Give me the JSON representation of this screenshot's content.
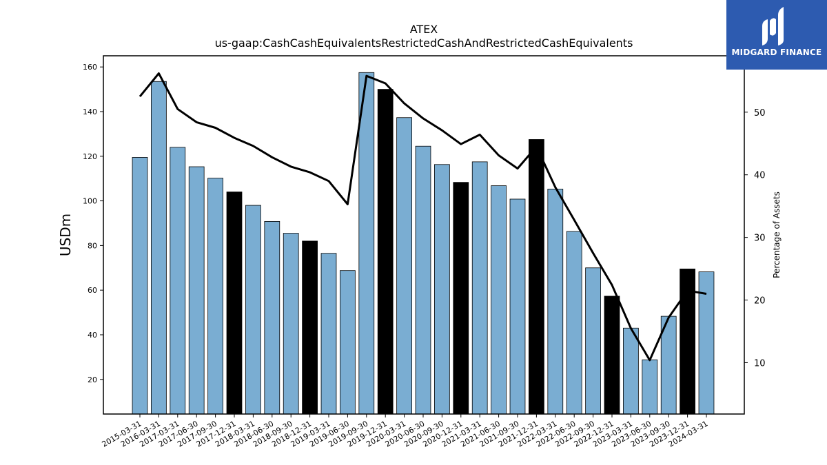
{
  "chart_data": {
    "type": "bar",
    "title": "ATEX",
    "subtitle": "us-gaap:CashCashEquivalentsRestrictedCashAndRestrictedCashEquivalents",
    "ylabel": "USDm",
    "y2label": "Percentage of Assets",
    "ylim": [
      4.5,
      165
    ],
    "y2lim": [
      1.8,
      59
    ],
    "yticks": [
      20,
      40,
      60,
      80,
      100,
      120,
      140,
      160
    ],
    "y2ticks": [
      10,
      20,
      30,
      40,
      50
    ],
    "categories": [
      "2015-03-31",
      "2016-03-31",
      "2017-03-31",
      "2017-06-30",
      "2017-09-30",
      "2017-12-31",
      "2018-03-31",
      "2018-06-30",
      "2018-09-30",
      "2018-12-31",
      "2019-03-31",
      "2019-06-30",
      "2019-09-30",
      "2019-12-31",
      "2020-03-31",
      "2020-06-30",
      "2020-09-30",
      "2020-12-31",
      "2021-03-31",
      "2021-06-30",
      "2021-09-30",
      "2021-12-31",
      "2022-03-31",
      "2022-06-30",
      "2022-09-30",
      "2022-12-31",
      "2023-03-31",
      "2023-06-30",
      "2023-09-30",
      "2023-12-31",
      "2024-03-31"
    ],
    "series": [
      {
        "values": [
          119.5,
          153.5,
          124,
          115.3,
          110.2,
          104,
          98,
          90.8,
          85.5,
          82,
          76.5,
          68.8,
          157.5,
          150,
          137.3,
          124.5,
          116.3,
          108.3,
          117.5,
          106.8,
          100.8,
          127.5,
          105.3,
          86.3,
          70,
          57.3,
          43,
          28.8,
          48.3,
          69.5,
          68.2
        ],
        "highlighted": [
          false,
          false,
          false,
          false,
          false,
          true,
          false,
          false,
          false,
          true,
          false,
          false,
          false,
          true,
          false,
          false,
          false,
          true,
          false,
          false,
          false,
          true,
          false,
          false,
          false,
          true,
          false,
          false,
          false,
          true,
          false
        ],
        "color": "#7aadd2",
        "highlight_color": "#000000"
      },
      {
        "type": "line",
        "axis": "right",
        "values": [
          52.5,
          56.2,
          50.5,
          48.4,
          47.5,
          45.9,
          44.6,
          42.8,
          41.3,
          40.4,
          39.0,
          35.3,
          55.8,
          54.6,
          51.4,
          49.0,
          47.1,
          44.9,
          46.4,
          43.1,
          41.0,
          44.5,
          38.0,
          32.8,
          27.5,
          22.4,
          15.5,
          10.4,
          17.2,
          21.5,
          21.0
        ],
        "color": "#000000"
      }
    ]
  },
  "logo": {
    "text": "MIDGARD FINANCE"
  },
  "colors": {
    "bar": "#7aadd2",
    "highlight_bar": "#000000",
    "line": "#000000",
    "logo_bg": "#2d5bb0"
  }
}
